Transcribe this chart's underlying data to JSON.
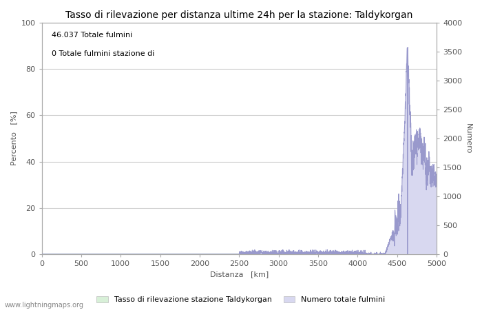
{
  "title": "Tasso di rilevazione per distanza ultime 24h per la stazione: Taldykorgan",
  "xlabel": "Distanza   [km]",
  "ylabel_left": "Percento   [%]",
  "ylabel_right": "Numero",
  "annotation_line1": "46.037 Totale fulmini",
  "annotation_line2": "0 Totale fulmini stazione di",
  "legend_label_green": "Tasso di rilevazione stazione Taldykorgan",
  "legend_label_blue": "Numero totale fulmini",
  "watermark": "www.lightningmaps.org",
  "xlim": [
    0,
    5000
  ],
  "ylim_left": [
    0,
    100
  ],
  "ylim_right": [
    0,
    4000
  ],
  "xticks": [
    0,
    500,
    1000,
    1500,
    2000,
    2500,
    3000,
    3500,
    4000,
    4500,
    5000
  ],
  "yticks_left": [
    0,
    20,
    40,
    60,
    80,
    100
  ],
  "yticks_right": [
    0,
    500,
    1000,
    1500,
    2000,
    2500,
    3000,
    3500,
    4000
  ],
  "color_blue_line": "#9999cc",
  "color_blue_fill": "#d8d8f0",
  "color_green_fill": "#d8f0d8",
  "color_green_line": "#99cc99",
  "title_fontsize": 10,
  "label_fontsize": 8,
  "tick_fontsize": 8,
  "annotation_fontsize": 8
}
